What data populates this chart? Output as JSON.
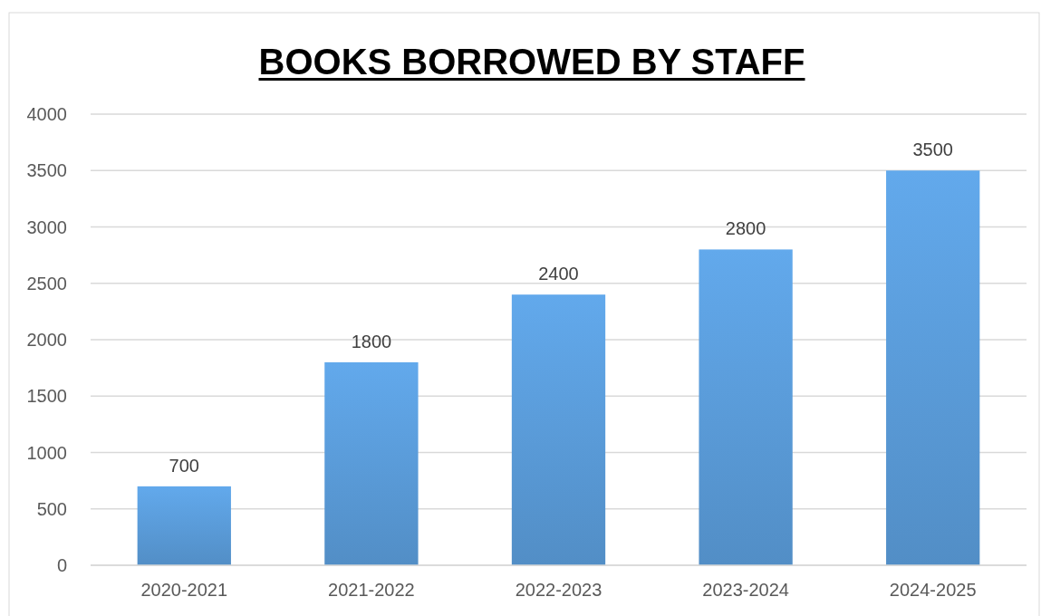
{
  "chart_data": {
    "type": "bar",
    "title": "BOOKS BORROWED BY STAFF",
    "categories": [
      "2020-2021",
      "2021-2022",
      "2022-2023",
      "2023-2024",
      "2024-2025"
    ],
    "values": [
      700,
      1800,
      2400,
      2800,
      3500
    ],
    "color": "#5a9bd8",
    "ylim": [
      0,
      4000
    ],
    "yticks": [
      0,
      500,
      1000,
      1500,
      2000,
      2500,
      3000,
      3500,
      4000
    ],
    "grid": "y",
    "data_labels": true
  }
}
